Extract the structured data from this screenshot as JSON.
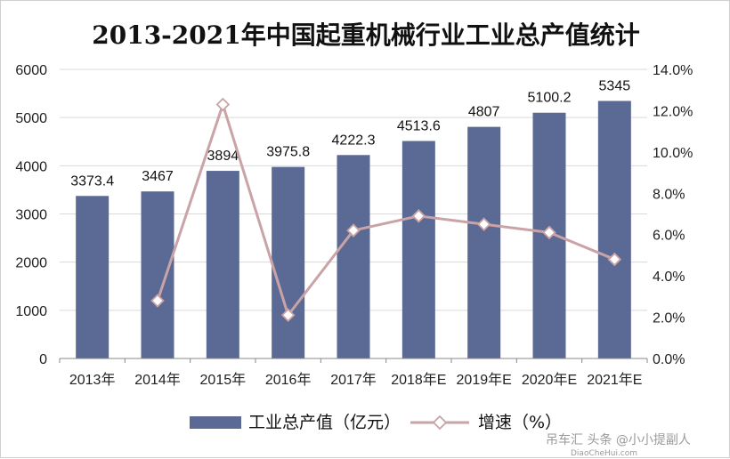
{
  "chart_data": {
    "type": "bar",
    "title": "2013-2021年中国起重机械行业工业总产值统计",
    "categories": [
      "2013年",
      "2014年",
      "2015年",
      "2016年",
      "2017年",
      "2018年E",
      "2019年E",
      "2020年E",
      "2021年E"
    ],
    "y_left": {
      "min": 0,
      "max": 6000,
      "step": 1000,
      "ticks": [
        "0",
        "1000",
        "2000",
        "3000",
        "4000",
        "5000",
        "6000"
      ]
    },
    "y_right": {
      "min": 0,
      "max": 14,
      "step": 2,
      "ticks": [
        "0.0%",
        "2.0%",
        "4.0%",
        "6.0%",
        "8.0%",
        "10.0%",
        "12.0%",
        "14.0%"
      ]
    },
    "series": [
      {
        "name": "工业总产值（亿元）",
        "type": "bar",
        "axis": "left",
        "values": [
          3373.4,
          3467,
          3894,
          3975.8,
          4222.3,
          4513.6,
          4807,
          5100.2,
          5345
        ],
        "labels": [
          "3373.4",
          "3467",
          "3894",
          "3975.8",
          "4222.3",
          "4513.6",
          "4807",
          "5100.2",
          "5345"
        ],
        "color": "#5b6a94"
      },
      {
        "name": "增速（%）",
        "type": "line",
        "axis": "right",
        "values": [
          null,
          2.8,
          12.3,
          2.1,
          6.2,
          6.9,
          6.5,
          6.1,
          4.8
        ],
        "color": "#c9a3a6"
      }
    ],
    "legend_position": "bottom",
    "grid": true
  },
  "watermark": {
    "text": "吊车汇 头条 @小小提副人",
    "sub": "DiaoCheHui.com"
  }
}
